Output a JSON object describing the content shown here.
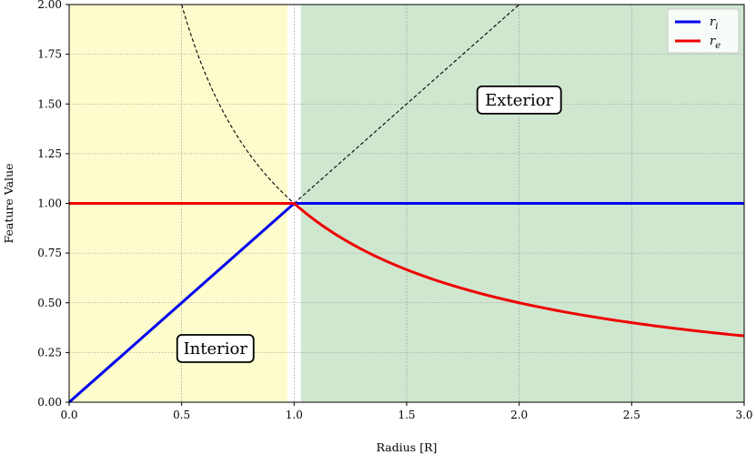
{
  "chart_data": {
    "type": "line",
    "xlabel": "Radius [R]",
    "ylabel": "Feature Value",
    "xlim": [
      0.0,
      3.0
    ],
    "ylim": [
      0.0,
      2.0
    ],
    "xticks": [
      "0.0",
      "0.5",
      "1.0",
      "1.5",
      "2.0",
      "2.5",
      "3.0"
    ],
    "yticks": [
      "0.00",
      "0.25",
      "0.50",
      "0.75",
      "1.00",
      "1.25",
      "1.50",
      "1.75",
      "2.00"
    ],
    "grid": true,
    "legend_position": "top-right",
    "regions": [
      {
        "label": "Interior",
        "x_range": [
          0.0,
          0.97
        ],
        "color": "#fdfccc"
      },
      {
        "label": "Exterior",
        "x_range": [
          1.03,
          3.0
        ],
        "color": "#cfe6cf"
      }
    ],
    "annotations": [
      {
        "text": "Interior",
        "x": 0.65,
        "y": 0.27
      },
      {
        "text": "Exterior",
        "x": 2.0,
        "y": 1.52
      }
    ],
    "series": [
      {
        "name": "r_i",
        "color": "#0000ee",
        "x": [
          0.0,
          1.0,
          3.0
        ],
        "y": [
          0.0,
          1.0,
          1.0
        ]
      },
      {
        "name": "r_e",
        "color": "#ee0000",
        "x": [
          0.0,
          1.0,
          1.25,
          1.5,
          2.0,
          2.5,
          3.0
        ],
        "y": [
          1.0,
          1.0,
          0.8,
          0.667,
          0.5,
          0.4,
          0.333
        ]
      }
    ],
    "guide_curves": [
      {
        "name": "1/r",
        "style": "dashed",
        "color": "#000000",
        "x": [
          0.5,
          0.6,
          0.7,
          0.8,
          0.9,
          1.0
        ],
        "y": [
          2.0,
          1.667,
          1.429,
          1.25,
          1.111,
          1.0
        ]
      },
      {
        "name": "r",
        "style": "dashed",
        "color": "#000000",
        "x": [
          1.0,
          2.0
        ],
        "y": [
          1.0,
          2.0
        ]
      }
    ],
    "legend": [
      {
        "label": "r",
        "sub": "i",
        "color": "#0000ee"
      },
      {
        "label": "r",
        "sub": "e",
        "color": "#ee0000"
      }
    ]
  }
}
